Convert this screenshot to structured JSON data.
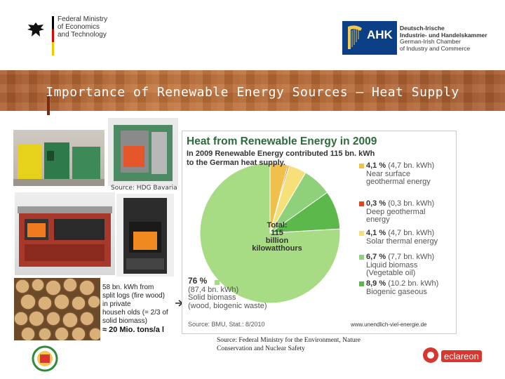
{
  "header": {
    "ministry_lines": [
      "Federal Ministry",
      "of Economics",
      "and Technology"
    ],
    "ahk_short": "AHK",
    "ahk_lines": [
      "Deutsch-Irische",
      "Industrie- und Handelskammer",
      "German-Irish Chamber",
      "of Industry and Commerce"
    ]
  },
  "banner": {
    "title": "Importance of Renewable Energy Sources – Heat Supply"
  },
  "photos": {
    "caption": "Source: HDG Bavaria"
  },
  "notes": {
    "logs_lines": [
      "58 bn. kWh from",
      "split logs (fire wood)",
      "in private",
      "househ olds (= 2/3 of",
      "solid biomass)"
    ],
    "tons": "≈ 20 Mio. tons/a l",
    "source_note_lines": [
      "Source: Federal Ministry for the Environment, Nature",
      "Conservation and Nuclear Safety"
    ]
  },
  "logos": {
    "eclareon": "eclareon"
  },
  "chart_data": {
    "type": "pie",
    "title": "Heat from Renewable Energy in 2009",
    "subtitle": "In 2009 Renewable Energy contributed 115 bn. kWh to the German heat supply.",
    "center_label": [
      "Total:",
      "115",
      "billion",
      "kilowatthours"
    ],
    "source": "Source: BMU, Stat.: 8/2010",
    "url": "www.unendlich-viel-energie.de",
    "slices": [
      {
        "pct": "4,1 %",
        "value_text": "(4,7 bn. kWh)",
        "label": [
          "Near surface",
          "geothermal energy"
        ],
        "value": 4.1,
        "color": "#f0c04c"
      },
      {
        "pct": "0,3 %",
        "value_text": "(0,3 bn. kWh)",
        "label": [
          "Deep geothermal",
          "energy"
        ],
        "value": 0.3,
        "color": "#e0461e"
      },
      {
        "pct": "4,1 %",
        "value_text": "(4,7 bn. kWh)",
        "label": [
          "Solar thermal energy"
        ],
        "value": 4.1,
        "color": "#f6e07a"
      },
      {
        "pct": "6,7 %",
        "value_text": "(7,7 bn. kWh)",
        "label": [
          "Liquid biomass",
          "(Vegetable oil)"
        ],
        "value": 6.7,
        "color": "#8fd07a"
      },
      {
        "pct": "8,9 %",
        "value_text": "(10.2 bn. kWh)",
        "label": [
          "Biogenic gaseous"
        ],
        "value": 8.9,
        "color": "#5cb84a"
      },
      {
        "pct": "76 %",
        "value_text": "(87,4 bn. kWh)",
        "label": [
          "Solid biomass",
          "(wood, biogenic waste)"
        ],
        "value": 76,
        "color": "#a8dc84"
      }
    ]
  }
}
